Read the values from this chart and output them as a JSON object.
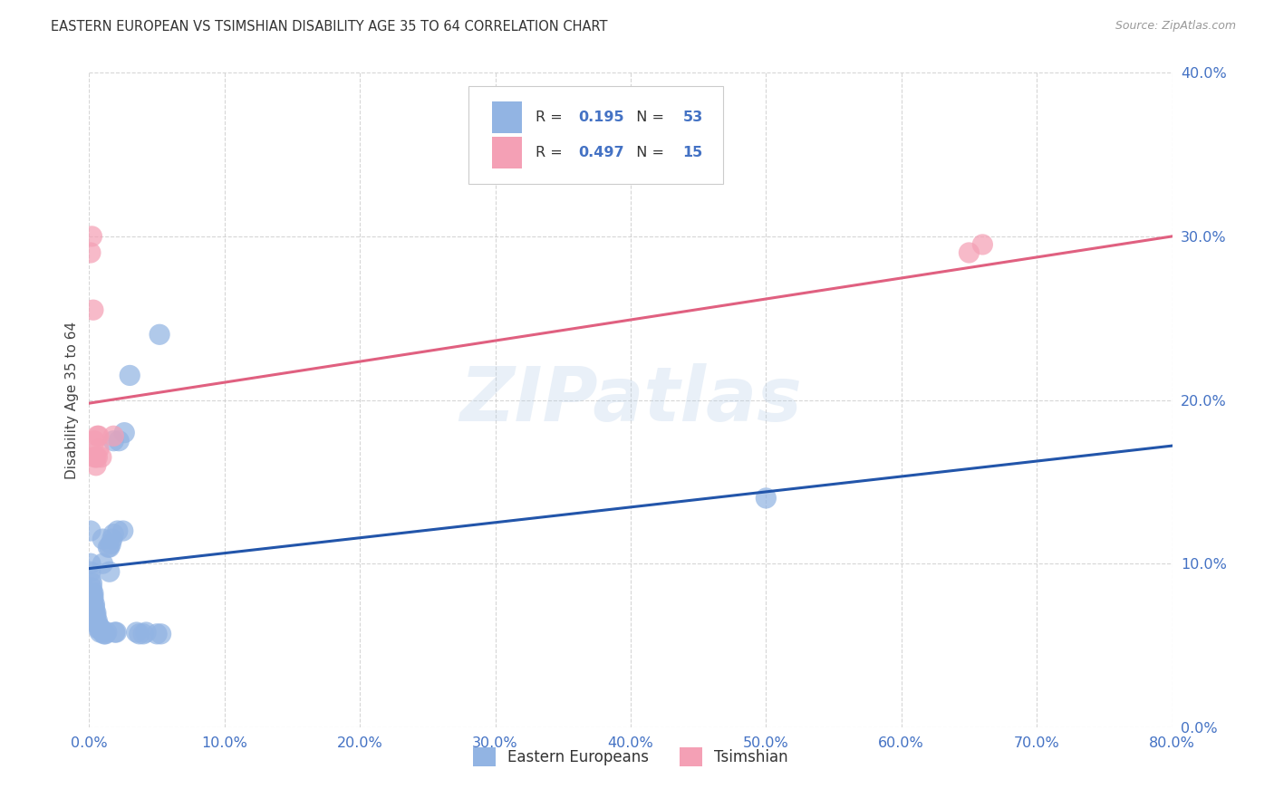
{
  "title": "EASTERN EUROPEAN VS TSIMSHIAN DISABILITY AGE 35 TO 64 CORRELATION CHART",
  "source": "Source: ZipAtlas.com",
  "ylabel": "Disability Age 35 to 64",
  "xlim": [
    0.0,
    0.8
  ],
  "ylim": [
    0.0,
    0.4
  ],
  "xticks": [
    0.0,
    0.1,
    0.2,
    0.3,
    0.4,
    0.5,
    0.6,
    0.7,
    0.8
  ],
  "yticks": [
    0.0,
    0.1,
    0.2,
    0.3,
    0.4
  ],
  "blue_R": "0.195",
  "blue_N": "53",
  "pink_R": "0.497",
  "pink_N": "15",
  "blue_color": "#92b4e3",
  "pink_color": "#f4a0b5",
  "blue_line_color": "#2255aa",
  "pink_line_color": "#e06080",
  "blue_scatter": [
    [
      0.001,
      0.12
    ],
    [
      0.001,
      0.1
    ],
    [
      0.001,
      0.095
    ],
    [
      0.001,
      0.09
    ],
    [
      0.002,
      0.088
    ],
    [
      0.002,
      0.085
    ],
    [
      0.002,
      0.082
    ],
    [
      0.002,
      0.078
    ],
    [
      0.003,
      0.082
    ],
    [
      0.003,
      0.08
    ],
    [
      0.003,
      0.078
    ],
    [
      0.003,
      0.075
    ],
    [
      0.004,
      0.075
    ],
    [
      0.004,
      0.073
    ],
    [
      0.004,
      0.07
    ],
    [
      0.005,
      0.07
    ],
    [
      0.005,
      0.068
    ],
    [
      0.005,
      0.065
    ],
    [
      0.006,
      0.065
    ],
    [
      0.006,
      0.063
    ],
    [
      0.007,
      0.062
    ],
    [
      0.007,
      0.06
    ],
    [
      0.008,
      0.06
    ],
    [
      0.008,
      0.058
    ],
    [
      0.009,
      0.06
    ],
    [
      0.01,
      0.058
    ],
    [
      0.01,
      0.1
    ],
    [
      0.01,
      0.115
    ],
    [
      0.011,
      0.057
    ],
    [
      0.012,
      0.057
    ],
    [
      0.013,
      0.058
    ],
    [
      0.014,
      0.11
    ],
    [
      0.015,
      0.11
    ],
    [
      0.015,
      0.095
    ],
    [
      0.016,
      0.112
    ],
    [
      0.017,
      0.115
    ],
    [
      0.018,
      0.118
    ],
    [
      0.018,
      0.175
    ],
    [
      0.019,
      0.058
    ],
    [
      0.02,
      0.058
    ],
    [
      0.021,
      0.12
    ],
    [
      0.022,
      0.175
    ],
    [
      0.025,
      0.12
    ],
    [
      0.026,
      0.18
    ],
    [
      0.03,
      0.215
    ],
    [
      0.035,
      0.058
    ],
    [
      0.037,
      0.057
    ],
    [
      0.04,
      0.057
    ],
    [
      0.042,
      0.058
    ],
    [
      0.05,
      0.057
    ],
    [
      0.052,
      0.24
    ],
    [
      0.053,
      0.057
    ],
    [
      0.5,
      0.14
    ]
  ],
  "pink_scatter": [
    [
      0.001,
      0.29
    ],
    [
      0.002,
      0.3
    ],
    [
      0.003,
      0.255
    ],
    [
      0.004,
      0.175
    ],
    [
      0.004,
      0.165
    ],
    [
      0.005,
      0.165
    ],
    [
      0.005,
      0.16
    ],
    [
      0.006,
      0.165
    ],
    [
      0.006,
      0.178
    ],
    [
      0.007,
      0.17
    ],
    [
      0.007,
      0.178
    ],
    [
      0.009,
      0.165
    ],
    [
      0.018,
      0.178
    ],
    [
      0.65,
      0.29
    ],
    [
      0.66,
      0.295
    ]
  ],
  "blue_trend_x": [
    0.0,
    0.8
  ],
  "blue_trend_y": [
    0.097,
    0.172
  ],
  "pink_trend_x": [
    0.0,
    0.8
  ],
  "pink_trend_y": [
    0.198,
    0.3
  ],
  "watermark": "ZIPatlas",
  "figsize": [
    14.06,
    8.92
  ],
  "dpi": 100
}
